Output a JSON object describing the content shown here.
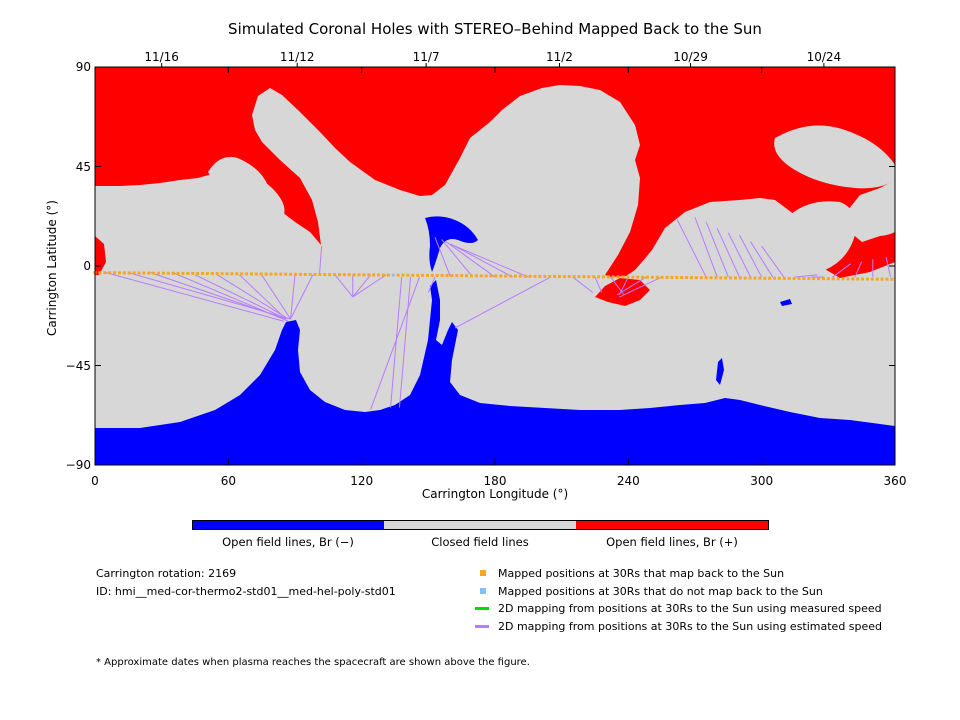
{
  "chart_data": {
    "type": "map",
    "title": "Simulated Coronal Holes with STEREO–Behind Mapped Back to the Sun",
    "xlabel": "Carrington Longitude (°)",
    "ylabel": "Carrington Latitude (°)",
    "xlim": [
      0,
      360
    ],
    "ylim": [
      -90,
      90
    ],
    "x_ticks": [
      "0",
      "60",
      "120",
      "180",
      "240",
      "300",
      "360"
    ],
    "y_ticks": [
      "90",
      "45",
      "0",
      "−45",
      "−90"
    ],
    "top_dates": [
      {
        "label": "11/16",
        "lon": 30
      },
      {
        "label": "11/12",
        "lon": 91
      },
      {
        "label": "11/7",
        "lon": 149
      },
      {
        "label": "11/2",
        "lon": 209
      },
      {
        "label": "10/29",
        "lon": 268
      },
      {
        "label": "10/24",
        "lon": 328
      }
    ],
    "colors": {
      "positive": "#ff0000",
      "negative": "#0000ff",
      "closed": "#d7d7d7",
      "mapped": "#f5a623",
      "unmapped": "#80c0ff",
      "measured": "#00e000",
      "estimated": "#b77bff"
    },
    "spacecraft_track": {
      "lat_start": -3,
      "lat_end": -6,
      "unmapped_lon": [
        134
      ]
    },
    "field_lines": [
      [
        5,
        -3,
        85,
        -25
      ],
      [
        15,
        -3,
        88,
        -24
      ],
      [
        25,
        -3,
        86,
        -24
      ],
      [
        35,
        -3,
        87,
        -25
      ],
      [
        45,
        -4,
        86,
        -24
      ],
      [
        55,
        -4,
        87,
        -24
      ],
      [
        65,
        -4,
        86,
        -24
      ],
      [
        75,
        -4,
        88,
        -24
      ],
      [
        90,
        -4,
        88,
        -24
      ],
      [
        98,
        -4,
        88,
        -24
      ],
      [
        101,
        -4,
        102,
        9
      ],
      [
        108,
        -4,
        116,
        -14
      ],
      [
        116,
        -4,
        116,
        -14
      ],
      [
        124,
        -4,
        116,
        -14
      ],
      [
        131,
        -4,
        116,
        -14
      ],
      [
        138,
        -5,
        133,
        -64
      ],
      [
        142,
        -5,
        137,
        -64
      ],
      [
        146,
        -5,
        124,
        -65
      ],
      [
        153,
        -5,
        150,
        -12
      ],
      [
        160,
        -5,
        153,
        13
      ],
      [
        170,
        -5,
        156,
        12
      ],
      [
        180,
        -5,
        158,
        11
      ],
      [
        188,
        -5,
        160,
        10
      ],
      [
        195,
        -5,
        162,
        9
      ],
      [
        205,
        -5,
        162,
        -28
      ],
      [
        215,
        -5,
        224,
        -12
      ],
      [
        225,
        -5,
        228,
        -12
      ],
      [
        232,
        -5,
        238,
        -13
      ],
      [
        240,
        -5,
        236,
        -13
      ],
      [
        248,
        -5,
        235,
        -13
      ],
      [
        255,
        -5,
        236,
        -14
      ],
      [
        275,
        -5,
        262,
        21
      ],
      [
        280,
        -5,
        270,
        22
      ],
      [
        285,
        -5,
        275,
        20
      ],
      [
        290,
        -5,
        280,
        17
      ],
      [
        295,
        -5,
        285,
        15
      ],
      [
        300,
        -5,
        290,
        14
      ],
      [
        305,
        -5,
        295,
        11
      ],
      [
        310,
        -5,
        300,
        9
      ],
      [
        315,
        -5,
        325,
        -4
      ],
      [
        322,
        -5,
        328,
        -5
      ],
      [
        332,
        -5,
        340,
        1
      ],
      [
        342,
        -5,
        345,
        2
      ],
      [
        350,
        -5,
        350,
        3
      ],
      [
        358,
        -5,
        356,
        4
      ]
    ],
    "regions": [
      {
        "polarity": "positive",
        "description": "north polar and low-latitude positive coronal holes"
      },
      {
        "polarity": "negative",
        "description": "south polar and equatorial negative coronal holes"
      }
    ]
  },
  "colorbar": {
    "labels": [
      "Open field lines, Br (−)",
      "Closed field lines",
      "Open field lines, Br (+)"
    ]
  },
  "info": {
    "rotation": "Carrington rotation: 2169",
    "id": "ID: hmi__med-cor-thermo2-std01__med-hel-poly-std01"
  },
  "legend": [
    {
      "type": "square",
      "color": "#f5a623",
      "label": "Mapped positions at 30Rs that map back to the Sun"
    },
    {
      "type": "square",
      "color": "#80c0ff",
      "label": "Mapped positions at 30Rs that do not map back to the Sun"
    },
    {
      "type": "line",
      "color": "#00e000",
      "label": "2D mapping from positions at 30Rs to the Sun using measured speed"
    },
    {
      "type": "line",
      "color": "#b77bff",
      "label": "2D mapping from positions at 30Rs to the Sun using estimated speed"
    }
  ],
  "note": "* Approximate dates when plasma reaches the spacecraft are shown above the figure."
}
